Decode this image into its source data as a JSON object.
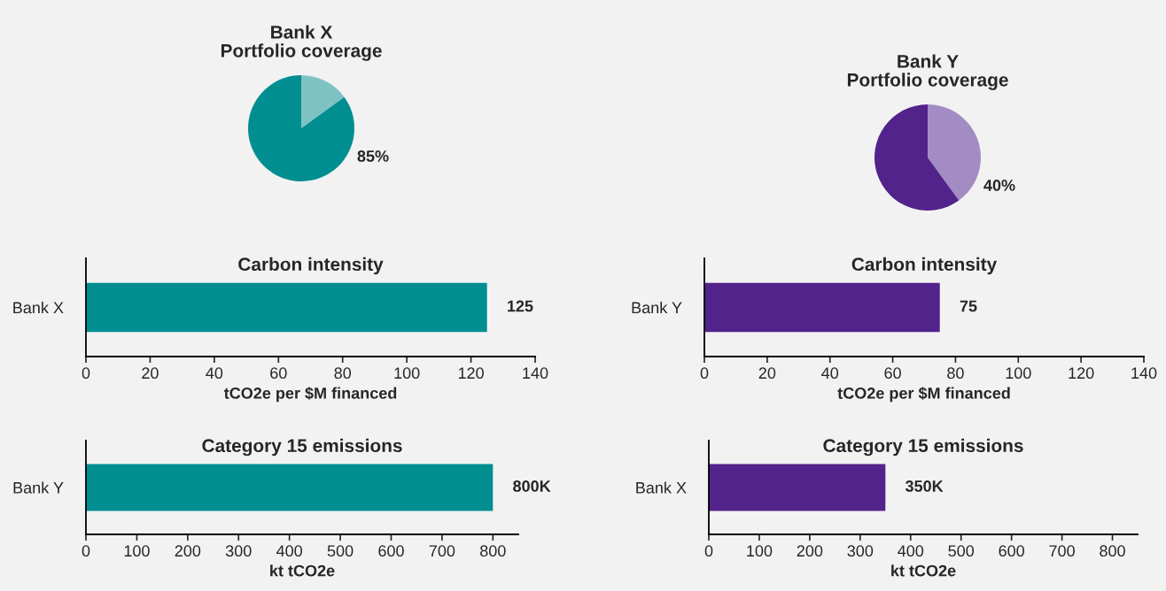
{
  "chart_data": [
    {
      "type": "pie",
      "title": "Bank X\nPortfolio coverage",
      "categories": [
        null,
        null
      ],
      "values": [
        15,
        85
      ],
      "colors": [
        "#7fc2c4",
        "#008e91"
      ],
      "value_labels": [
        null,
        "85%"
      ]
    },
    {
      "type": "pie",
      "title": "Bank Y\nPortfolio coverage",
      "categories": [
        null,
        null
      ],
      "values": [
        40,
        60
      ],
      "colors": [
        "#a38cc3",
        "#52238a"
      ],
      "value_labels": [
        "40%",
        null
      ]
    },
    {
      "type": "bar",
      "orientation": "horizontal",
      "title": "Carbon intensity",
      "xlabel": "tCO2e per $M financed",
      "categories": [
        "Bank X"
      ],
      "values": [
        125
      ],
      "color": "#008e91",
      "value_labels": [
        "125"
      ],
      "xlim": [
        0,
        140
      ],
      "xticks": [
        0,
        20,
        40,
        60,
        80,
        100,
        120,
        140
      ]
    },
    {
      "type": "bar",
      "orientation": "horizontal",
      "title": "Carbon intensity",
      "xlabel": "tCO2e per $M financed",
      "categories": [
        "Bank Y"
      ],
      "values": [
        75
      ],
      "color": "#52238a",
      "value_labels": [
        "75"
      ],
      "xlim": [
        0,
        140
      ],
      "xticks": [
        0,
        20,
        40,
        60,
        80,
        100,
        120,
        140
      ]
    },
    {
      "type": "bar",
      "orientation": "horizontal",
      "title": "Category 15 emissions",
      "xlabel": "kt tCO2e",
      "categories": [
        "Bank Y"
      ],
      "values": [
        800
      ],
      "color": "#008e91",
      "value_labels": [
        "800K"
      ],
      "xlim": [
        0,
        850
      ],
      "xticks": [
        0,
        100,
        200,
        300,
        400,
        500,
        600,
        700,
        800
      ]
    },
    {
      "type": "bar",
      "orientation": "horizontal",
      "title": "Category 15 emissions",
      "xlabel": "kt tCO2e",
      "categories": [
        "Bank X"
      ],
      "values": [
        350
      ],
      "color": "#52238a",
      "value_labels": [
        "350K"
      ],
      "xlim": [
        0,
        850
      ],
      "xticks": [
        0,
        100,
        200,
        300,
        400,
        500,
        600,
        700,
        800
      ]
    }
  ]
}
